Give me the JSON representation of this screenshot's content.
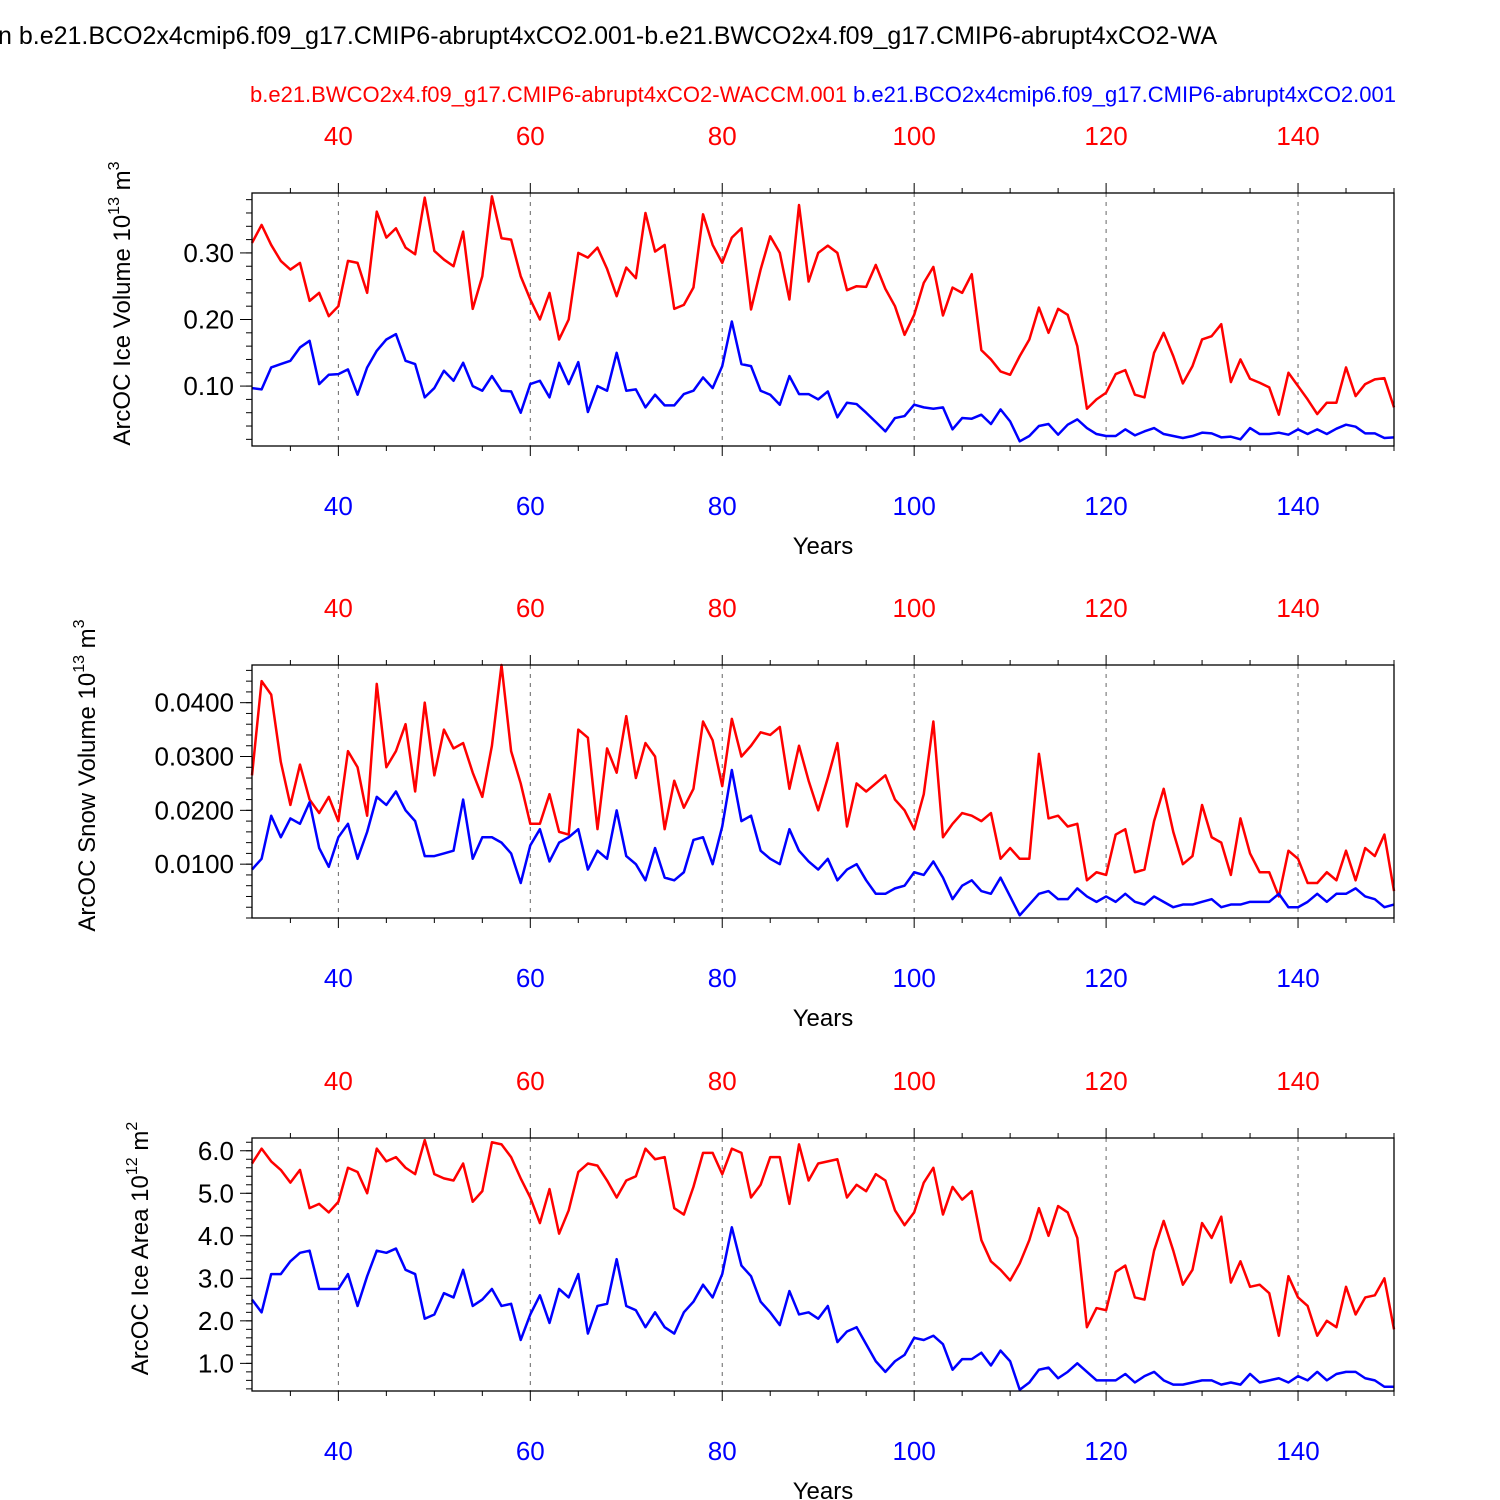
{
  "figure": {
    "title": "n b.e21.BCO2x4cmip6.f09_g17.CMIP6-abrupt4xCO2.001-b.e21.BWCO2x4.f09_g17.CMIP6-abrupt4xCO2-WA",
    "legend_red": "b.e21.BWCO2x4.f09_g17.CMIP6-abrupt4xCO2-WACCM.001",
    "legend_blue": "b.e21.BCO2x4cmip6.f09_g17.CMIP6-abrupt4xCO2.001",
    "colors": {
      "red": "#ff0000",
      "blue": "#0000ff",
      "axis": "#000000",
      "grid": "#666666"
    }
  },
  "chart_data": [
    {
      "type": "line",
      "panel": "ice-volume",
      "ylabel": "ArcOC Ice Volume 10",
      "ylabel_sup": "13",
      "ylabel_unit": " m",
      "ylabel_unit_sup": "3",
      "xlabel": "Years",
      "xlim": [
        31,
        150
      ],
      "ylim": [
        0.01,
        0.39
      ],
      "yticks": [
        0.1,
        0.2,
        0.3
      ],
      "ytick_labels": [
        "0.10",
        "0.20",
        "0.30"
      ],
      "yminor_step": 0.02,
      "xticks": [
        40,
        60,
        80,
        100,
        120,
        140
      ],
      "xtick_labels_top": [
        "40",
        "60",
        "80",
        "100",
        "120",
        "140"
      ],
      "xtick_labels_bottom": [
        "40",
        "60",
        "80",
        "100",
        "120",
        "140"
      ],
      "x_start": 31,
      "series": [
        {
          "name": "b.e21.BWCO2x4.f09_g17.CMIP6-abrupt4xCO2-WACCM.001",
          "color": "red",
          "values": [
            0.315,
            0.342,
            0.312,
            0.288,
            0.275,
            0.285,
            0.228,
            0.24,
            0.205,
            0.22,
            0.288,
            0.285,
            0.24,
            0.362,
            0.323,
            0.337,
            0.308,
            0.298,
            0.383,
            0.303,
            0.29,
            0.28,
            0.332,
            0.216,
            0.265,
            0.385,
            0.322,
            0.32,
            0.265,
            0.23,
            0.2,
            0.24,
            0.17,
            0.2,
            0.3,
            0.293,
            0.308,
            0.276,
            0.235,
            0.278,
            0.262,
            0.36,
            0.302,
            0.312,
            0.216,
            0.222,
            0.248,
            0.358,
            0.312,
            0.285,
            0.323,
            0.337,
            0.215,
            0.275,
            0.325,
            0.3,
            0.23,
            0.372,
            0.257,
            0.3,
            0.311,
            0.3,
            0.244,
            0.25,
            0.249,
            0.282,
            0.246,
            0.22,
            0.177,
            0.207,
            0.255,
            0.279,
            0.206,
            0.248,
            0.24,
            0.268,
            0.154,
            0.14,
            0.122,
            0.117,
            0.145,
            0.17,
            0.218,
            0.18,
            0.216,
            0.207,
            0.16,
            0.066,
            0.08,
            0.09,
            0.118,
            0.124,
            0.087,
            0.083,
            0.15,
            0.18,
            0.145,
            0.104,
            0.13,
            0.17,
            0.175,
            0.193,
            0.106,
            0.14,
            0.111,
            0.105,
            0.098,
            0.057,
            0.12,
            0.1,
            0.08,
            0.058,
            0.075,
            0.075,
            0.128,
            0.085,
            0.103,
            0.11,
            0.112,
            0.068
          ]
        },
        {
          "name": "b.e21.BCO2x4cmip6.f09_g17.CMIP6-abrupt4xCO2.001",
          "color": "blue",
          "values": [
            0.097,
            0.095,
            0.128,
            0.133,
            0.138,
            0.158,
            0.168,
            0.103,
            0.117,
            0.118,
            0.125,
            0.087,
            0.128,
            0.153,
            0.17,
            0.178,
            0.138,
            0.133,
            0.083,
            0.097,
            0.123,
            0.108,
            0.135,
            0.1,
            0.093,
            0.115,
            0.093,
            0.092,
            0.06,
            0.103,
            0.108,
            0.083,
            0.135,
            0.103,
            0.136,
            0.061,
            0.1,
            0.093,
            0.15,
            0.093,
            0.095,
            0.068,
            0.087,
            0.071,
            0.071,
            0.088,
            0.093,
            0.113,
            0.097,
            0.13,
            0.197,
            0.133,
            0.13,
            0.093,
            0.087,
            0.072,
            0.115,
            0.088,
            0.088,
            0.08,
            0.092,
            0.053,
            0.075,
            0.073,
            0.06,
            0.046,
            0.032,
            0.052,
            0.055,
            0.072,
            0.068,
            0.066,
            0.068,
            0.035,
            0.052,
            0.051,
            0.057,
            0.043,
            0.065,
            0.047,
            0.017,
            0.025,
            0.04,
            0.043,
            0.027,
            0.042,
            0.05,
            0.037,
            0.028,
            0.025,
            0.025,
            0.035,
            0.026,
            0.032,
            0.037,
            0.028,
            0.025,
            0.022,
            0.025,
            0.03,
            0.029,
            0.023,
            0.024,
            0.02,
            0.037,
            0.028,
            0.028,
            0.03,
            0.027,
            0.035,
            0.028,
            0.035,
            0.028,
            0.036,
            0.042,
            0.039,
            0.029,
            0.029,
            0.022,
            0.023
          ]
        }
      ]
    },
    {
      "type": "line",
      "panel": "snow-volume",
      "ylabel": "ArcOC Snow Volume 10",
      "ylabel_sup": "13",
      "ylabel_unit": " m",
      "ylabel_unit_sup": "3",
      "xlabel": "Years",
      "xlim": [
        31,
        150
      ],
      "ylim": [
        0.0,
        0.047
      ],
      "yticks": [
        0.01,
        0.02,
        0.03,
        0.04
      ],
      "ytick_labels": [
        "0.0100",
        "0.0200",
        "0.0300",
        "0.0400"
      ],
      "yminor_step": 0.002,
      "xticks": [
        40,
        60,
        80,
        100,
        120,
        140
      ],
      "xtick_labels_top": [
        "40",
        "60",
        "80",
        "100",
        "120",
        "140"
      ],
      "xtick_labels_bottom": [
        "40",
        "60",
        "80",
        "100",
        "120",
        "140"
      ],
      "x_start": 31,
      "series": [
        {
          "name": "b.e21.BWCO2x4.f09_g17.CMIP6-abrupt4xCO2-WACCM.001",
          "color": "red",
          "values": [
            0.0265,
            0.044,
            0.0415,
            0.029,
            0.021,
            0.0285,
            0.022,
            0.0195,
            0.0225,
            0.018,
            0.031,
            0.028,
            0.019,
            0.0435,
            0.028,
            0.031,
            0.036,
            0.0235,
            0.04,
            0.0265,
            0.035,
            0.0315,
            0.0325,
            0.027,
            0.0225,
            0.032,
            0.047,
            0.031,
            0.025,
            0.0175,
            0.0175,
            0.023,
            0.016,
            0.0155,
            0.035,
            0.0335,
            0.0165,
            0.0315,
            0.027,
            0.0375,
            0.026,
            0.0325,
            0.03,
            0.0165,
            0.0255,
            0.0205,
            0.024,
            0.0365,
            0.033,
            0.0245,
            0.037,
            0.03,
            0.032,
            0.0345,
            0.034,
            0.0355,
            0.024,
            0.032,
            0.0255,
            0.02,
            0.026,
            0.0325,
            0.017,
            0.025,
            0.0235,
            0.025,
            0.0265,
            0.022,
            0.02,
            0.0165,
            0.023,
            0.0365,
            0.015,
            0.0175,
            0.0195,
            0.019,
            0.018,
            0.0195,
            0.011,
            0.013,
            0.011,
            0.011,
            0.0305,
            0.0185,
            0.019,
            0.017,
            0.0175,
            0.007,
            0.0085,
            0.008,
            0.0155,
            0.0165,
            0.0085,
            0.009,
            0.018,
            0.024,
            0.016,
            0.01,
            0.0115,
            0.021,
            0.015,
            0.014,
            0.008,
            0.0185,
            0.012,
            0.0085,
            0.0085,
            0.004,
            0.0125,
            0.011,
            0.0065,
            0.0065,
            0.0085,
            0.007,
            0.0125,
            0.007,
            0.013,
            0.0115,
            0.0155,
            0.005
          ]
        },
        {
          "name": "b.e21.BCO2x4cmip6.f09_g17.CMIP6-abrupt4xCO2.001",
          "color": "blue",
          "values": [
            0.009,
            0.011,
            0.019,
            0.015,
            0.0185,
            0.0175,
            0.0215,
            0.013,
            0.0095,
            0.015,
            0.0175,
            0.011,
            0.016,
            0.0225,
            0.021,
            0.0235,
            0.02,
            0.018,
            0.0115,
            0.0115,
            0.012,
            0.0125,
            0.022,
            0.011,
            0.015,
            0.015,
            0.014,
            0.012,
            0.0065,
            0.0135,
            0.0165,
            0.0105,
            0.014,
            0.015,
            0.0165,
            0.009,
            0.0125,
            0.011,
            0.02,
            0.0115,
            0.01,
            0.007,
            0.013,
            0.0075,
            0.007,
            0.0085,
            0.0145,
            0.015,
            0.01,
            0.017,
            0.0275,
            0.018,
            0.019,
            0.0125,
            0.011,
            0.01,
            0.0165,
            0.0125,
            0.0105,
            0.009,
            0.011,
            0.007,
            0.009,
            0.01,
            0.007,
            0.0045,
            0.0045,
            0.0055,
            0.006,
            0.0085,
            0.008,
            0.0105,
            0.0075,
            0.0035,
            0.006,
            0.007,
            0.005,
            0.0045,
            0.0075,
            0.004,
            0.0005,
            0.0025,
            0.0045,
            0.005,
            0.0035,
            0.0035,
            0.0055,
            0.004,
            0.003,
            0.004,
            0.003,
            0.0045,
            0.003,
            0.0025,
            0.004,
            0.003,
            0.002,
            0.0025,
            0.0025,
            0.003,
            0.0035,
            0.002,
            0.0025,
            0.0025,
            0.003,
            0.003,
            0.003,
            0.0045,
            0.002,
            0.002,
            0.003,
            0.0045,
            0.003,
            0.0045,
            0.0045,
            0.0055,
            0.004,
            0.0035,
            0.002,
            0.0025
          ]
        }
      ]
    },
    {
      "type": "line",
      "panel": "ice-area",
      "ylabel": "ArcOC Ice Area 10",
      "ylabel_sup": "12",
      "ylabel_unit": " m",
      "ylabel_unit_sup": "2",
      "xlabel": "Years",
      "xlim": [
        31,
        150
      ],
      "ylim": [
        0.35,
        6.3
      ],
      "yticks": [
        1.0,
        2.0,
        3.0,
        4.0,
        5.0,
        6.0
      ],
      "ytick_labels": [
        "1.0",
        "2.0",
        "3.0",
        "4.0",
        "5.0",
        "6.0"
      ],
      "yminor_step": 0.2,
      "xticks": [
        40,
        60,
        80,
        100,
        120,
        140
      ],
      "xtick_labels_top": [
        "40",
        "60",
        "80",
        "100",
        "120",
        "140"
      ],
      "xtick_labels_bottom": [
        "40",
        "60",
        "80",
        "100",
        "120",
        "140"
      ],
      "x_start": 31,
      "series": [
        {
          "name": "b.e21.BWCO2x4.f09_g17.CMIP6-abrupt4xCO2-WACCM.001",
          "color": "red",
          "values": [
            5.7,
            6.05,
            5.75,
            5.55,
            5.25,
            5.55,
            4.65,
            4.75,
            4.55,
            4.8,
            5.6,
            5.5,
            5.0,
            6.05,
            5.75,
            5.85,
            5.6,
            5.45,
            6.25,
            5.45,
            5.35,
            5.3,
            5.7,
            4.8,
            5.05,
            6.2,
            6.15,
            5.85,
            5.35,
            4.9,
            4.3,
            5.1,
            4.05,
            4.6,
            5.5,
            5.7,
            5.65,
            5.3,
            4.9,
            5.3,
            5.4,
            6.05,
            5.8,
            5.85,
            4.65,
            4.5,
            5.15,
            5.95,
            5.95,
            5.45,
            6.05,
            5.95,
            4.9,
            5.2,
            5.85,
            5.85,
            4.75,
            6.15,
            5.3,
            5.7,
            5.75,
            5.8,
            4.9,
            5.2,
            5.05,
            5.45,
            5.3,
            4.6,
            4.25,
            4.55,
            5.25,
            5.6,
            4.5,
            5.15,
            4.85,
            5.05,
            3.9,
            3.4,
            3.2,
            2.95,
            3.35,
            3.9,
            4.65,
            4.0,
            4.7,
            4.55,
            3.95,
            1.85,
            2.3,
            2.25,
            3.15,
            3.3,
            2.55,
            2.5,
            3.65,
            4.35,
            3.65,
            2.85,
            3.2,
            4.3,
            3.95,
            4.45,
            2.9,
            3.4,
            2.8,
            2.85,
            2.65,
            1.65,
            3.05,
            2.55,
            2.35,
            1.65,
            2.0,
            1.85,
            2.8,
            2.15,
            2.55,
            2.6,
            3.0,
            1.8
          ]
        },
        {
          "name": "b.e21.BCO2x4cmip6.f09_g17.CMIP6-abrupt4xCO2.001",
          "color": "blue",
          "values": [
            2.5,
            2.2,
            3.1,
            3.1,
            3.4,
            3.6,
            3.65,
            2.75,
            2.75,
            2.75,
            3.1,
            2.35,
            3.05,
            3.65,
            3.6,
            3.7,
            3.2,
            3.1,
            2.05,
            2.15,
            2.65,
            2.55,
            3.2,
            2.35,
            2.5,
            2.75,
            2.35,
            2.4,
            1.55,
            2.15,
            2.6,
            1.95,
            2.75,
            2.55,
            3.1,
            1.7,
            2.35,
            2.4,
            3.45,
            2.35,
            2.25,
            1.85,
            2.2,
            1.85,
            1.7,
            2.2,
            2.45,
            2.85,
            2.55,
            3.1,
            4.2,
            3.3,
            3.05,
            2.45,
            2.2,
            1.9,
            2.7,
            2.15,
            2.2,
            2.05,
            2.35,
            1.5,
            1.75,
            1.85,
            1.45,
            1.05,
            0.8,
            1.05,
            1.2,
            1.6,
            1.55,
            1.65,
            1.45,
            0.85,
            1.1,
            1.1,
            1.25,
            0.95,
            1.3,
            1.05,
            0.38,
            0.55,
            0.85,
            0.9,
            0.65,
            0.8,
            1.0,
            0.8,
            0.6,
            0.6,
            0.6,
            0.75,
            0.55,
            0.7,
            0.8,
            0.6,
            0.5,
            0.5,
            0.55,
            0.6,
            0.6,
            0.5,
            0.55,
            0.5,
            0.75,
            0.55,
            0.6,
            0.65,
            0.55,
            0.7,
            0.6,
            0.8,
            0.6,
            0.75,
            0.8,
            0.8,
            0.65,
            0.6,
            0.45,
            0.45
          ]
        }
      ]
    }
  ]
}
